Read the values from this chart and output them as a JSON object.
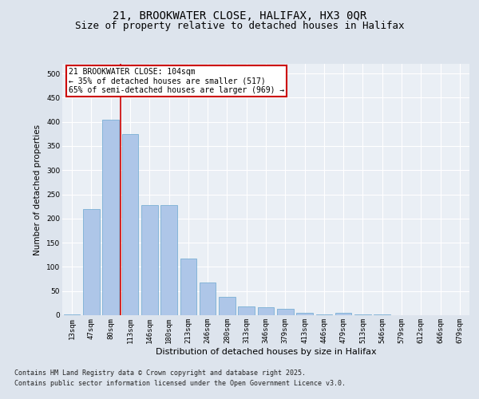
{
  "title1": "21, BROOKWATER CLOSE, HALIFAX, HX3 0QR",
  "title2": "Size of property relative to detached houses in Halifax",
  "xlabel": "Distribution of detached houses by size in Halifax",
  "ylabel": "Number of detached properties",
  "categories": [
    "13sqm",
    "47sqm",
    "80sqm",
    "113sqm",
    "146sqm",
    "180sqm",
    "213sqm",
    "246sqm",
    "280sqm",
    "313sqm",
    "346sqm",
    "379sqm",
    "413sqm",
    "446sqm",
    "479sqm",
    "513sqm",
    "546sqm",
    "579sqm",
    "612sqm",
    "646sqm",
    "679sqm"
  ],
  "values": [
    2,
    220,
    405,
    375,
    228,
    228,
    118,
    68,
    38,
    18,
    17,
    13,
    5,
    2,
    5,
    1,
    1,
    0,
    0,
    0,
    0
  ],
  "bar_color": "#aec6e8",
  "bar_edge_color": "#7aafd4",
  "vline_color": "#cc0000",
  "vline_x_index": 2.5,
  "annotation_text": "21 BROOKWATER CLOSE: 104sqm\n← 35% of detached houses are smaller (517)\n65% of semi-detached houses are larger (969) →",
  "annotation_fontsize": 7,
  "ylim": [
    0,
    520
  ],
  "yticks": [
    0,
    50,
    100,
    150,
    200,
    250,
    300,
    350,
    400,
    450,
    500
  ],
  "bg_color": "#dde4ed",
  "plot_bg_color": "#eaeff5",
  "grid_color": "#ffffff",
  "footer1": "Contains HM Land Registry data © Crown copyright and database right 2025.",
  "footer2": "Contains public sector information licensed under the Open Government Licence v3.0.",
  "title_fontsize": 10,
  "subtitle_fontsize": 9,
  "xlabel_fontsize": 8,
  "ylabel_fontsize": 7.5,
  "tick_fontsize": 6.5,
  "footer_fontsize": 6
}
